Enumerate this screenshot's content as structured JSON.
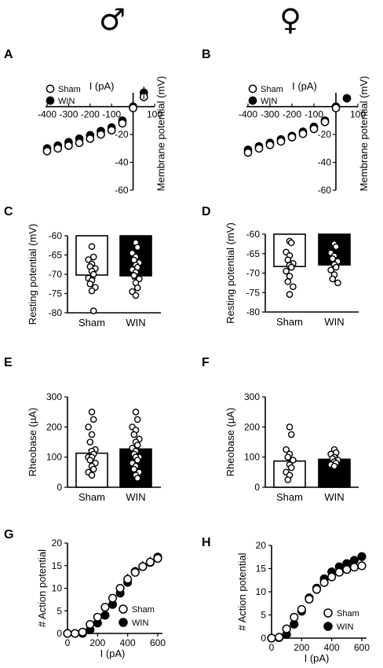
{
  "header": {
    "male_symbol": "♂",
    "female_symbol": "♀"
  },
  "panels": {
    "A": {
      "label": "A"
    },
    "B": {
      "label": "B"
    },
    "C": {
      "label": "C"
    },
    "D": {
      "label": "D"
    },
    "E": {
      "label": "E"
    },
    "F": {
      "label": "F"
    },
    "G": {
      "label": "G"
    },
    "H": {
      "label": "H"
    }
  },
  "colors": {
    "sham_fill": "#ffffff",
    "win_fill": "#000000",
    "stroke": "#000000"
  },
  "chart_data": [
    {
      "id": "A",
      "type": "scatter",
      "xlabel": "I (pA)",
      "ylabel": "Membrane potential (mV)",
      "xlim": [
        -400,
        100
      ],
      "ylim": [
        -60,
        10
      ],
      "xticks": [
        -400,
        -300,
        -200,
        -100,
        100
      ],
      "yticks": [
        -20,
        -40,
        -60
      ],
      "legend": [
        "Sham",
        "WIN"
      ],
      "legend_position": "top-left",
      "series": [
        {
          "name": "Sham",
          "x": [
            -400,
            -350,
            -300,
            -250,
            -200,
            -150,
            -100,
            -50,
            0,
            50
          ],
          "y": [
            -32,
            -30,
            -28,
            -26,
            -23,
            -20,
            -17,
            -12,
            -1,
            7
          ]
        },
        {
          "name": "WIN",
          "x": [
            -400,
            -350,
            -300,
            -250,
            -200,
            -150,
            -100,
            -50,
            0,
            50
          ],
          "y": [
            -30,
            -28,
            -25.5,
            -23,
            -20.5,
            -17.5,
            -15,
            -10,
            0,
            10
          ]
        }
      ]
    },
    {
      "id": "B",
      "type": "scatter",
      "xlabel": "I (pA)",
      "ylabel": "Membrane potential (mV)",
      "xlim": [
        -400,
        100
      ],
      "ylim": [
        -60,
        10
      ],
      "xticks": [
        -400,
        -300,
        -200,
        -100,
        100
      ],
      "yticks": [
        -20,
        -40,
        -60
      ],
      "legend": [
        "Sham",
        "WIN"
      ],
      "legend_position": "top-left",
      "series": [
        {
          "name": "Sham",
          "x": [
            -400,
            -350,
            -300,
            -250,
            -200,
            -150,
            -100,
            -50,
            0
          ],
          "y": [
            -33,
            -30,
            -27.5,
            -25,
            -22,
            -19.5,
            -16,
            -11,
            -1
          ]
        },
        {
          "name": "WIN",
          "x": [
            -400,
            -350,
            -300,
            -250,
            -200,
            -150,
            -100,
            -50,
            0,
            50
          ],
          "y": [
            -31,
            -28.5,
            -26,
            -23.5,
            -21,
            -18,
            -14.5,
            -10,
            0,
            6
          ]
        }
      ]
    },
    {
      "id": "C",
      "type": "bar",
      "categories": [
        "Sham",
        "WIN"
      ],
      "ylabel": "Resting potential (mV)",
      "ylim": [
        -80,
        -60
      ],
      "yticks": [
        -60,
        -65,
        -70,
        -75,
        -80
      ],
      "values": [
        -70.2,
        -70.4
      ],
      "points": [
        [
          -62.8,
          -65.5,
          -66.2,
          -67.3,
          -68,
          -68.5,
          -69.2,
          -70,
          -71,
          -71.6,
          -72.5,
          -73.4,
          -74.3,
          -79.5
        ],
        [
          -61.8,
          -63,
          -64.5,
          -65.5,
          -66.3,
          -67,
          -67.6,
          -68.2,
          -68.8,
          -69.5,
          -70.3,
          -71.2,
          -72.2,
          -73.5,
          -74.5,
          -75.5
        ]
      ]
    },
    {
      "id": "D",
      "type": "bar",
      "categories": [
        "Sham",
        "WIN"
      ],
      "ylabel": "Resting potential (mV)",
      "ylim": [
        -80,
        -60
      ],
      "yticks": [
        -60,
        -65,
        -70,
        -75,
        -80
      ],
      "values": [
        -68.3,
        -67.9
      ],
      "points": [
        [
          -61.8,
          -62.2,
          -64.6,
          -65.5,
          -66.6,
          -67.5,
          -68,
          -68.5,
          -69.5,
          -70.8,
          -72.2,
          -73.5,
          -75.5
        ],
        [
          -62.5,
          -63.2,
          -64.8,
          -65.6,
          -66.3,
          -67,
          -67.8,
          -68.5,
          -69.2,
          -70.4,
          -71.5,
          -72.5
        ]
      ]
    },
    {
      "id": "E",
      "type": "bar",
      "categories": [
        "Sham",
        "WIN"
      ],
      "ylabel": "Rheobase (µA)",
      "ylim": [
        0,
        300
      ],
      "yticks": [
        0,
        100,
        200,
        300
      ],
      "values": [
        113,
        127
      ],
      "points": [
        [
          250,
          225,
          200,
          175,
          150,
          125,
          120,
          110,
          100,
          100,
          90,
          80,
          70,
          60,
          50,
          40
        ],
        [
          250,
          225,
          200,
          190,
          175,
          160,
          150,
          140,
          130,
          120,
          110,
          100,
          100,
          90,
          80,
          70,
          60,
          50,
          40,
          30
        ]
      ]
    },
    {
      "id": "F",
      "type": "bar",
      "categories": [
        "Sham",
        "WIN"
      ],
      "ylabel": "Rheobase (µA)",
      "ylim": [
        0,
        300
      ],
      "yticks": [
        0,
        100,
        200,
        300
      ],
      "values": [
        87,
        93
      ],
      "points": [
        [
          200,
          175,
          125,
          110,
          100,
          90,
          75,
          65,
          50,
          40,
          25
        ],
        [
          125,
          115,
          110,
          100,
          95,
          90,
          85,
          80,
          75,
          70
        ]
      ]
    },
    {
      "id": "G",
      "type": "scatter",
      "xlabel": "I (pA)",
      "ylabel": "# Action potential",
      "xlim": [
        0,
        600
      ],
      "ylim": [
        0,
        20
      ],
      "xticks": [
        0,
        200,
        400,
        600
      ],
      "yticks": [
        0,
        5,
        10,
        15,
        20
      ],
      "legend": [
        "Sham",
        "WIN"
      ],
      "legend_position": "bottom-right",
      "series": [
        {
          "name": "Sham",
          "x": [
            0,
            50,
            100,
            150,
            200,
            250,
            300,
            350,
            400,
            450,
            500,
            550,
            600
          ],
          "y": [
            0,
            0,
            0.3,
            2,
            3.6,
            5.8,
            7.8,
            10,
            12,
            13.5,
            14.8,
            15.8,
            16.6
          ]
        },
        {
          "name": "WIN",
          "x": [
            0,
            50,
            100,
            150,
            200,
            250,
            300,
            350,
            400,
            450,
            500,
            550,
            600
          ],
          "y": [
            0,
            0,
            0,
            0.8,
            2.3,
            4,
            6.4,
            8.9,
            11.3,
            13.7,
            14.8,
            15.7,
            16.9
          ]
        }
      ]
    },
    {
      "id": "H",
      "type": "scatter",
      "xlabel": "I (pA)",
      "ylabel": "# Action potential",
      "xlim": [
        0,
        600
      ],
      "ylim": [
        0,
        20
      ],
      "xticks": [
        0,
        200,
        400,
        600
      ],
      "yticks": [
        0,
        5,
        10,
        15,
        20
      ],
      "legend": [
        "Sham",
        "WIN"
      ],
      "legend_position": "bottom-right",
      "series": [
        {
          "name": "Sham",
          "x": [
            0,
            50,
            100,
            150,
            200,
            250,
            300,
            350,
            400,
            450,
            500,
            550,
            600
          ],
          "y": [
            0,
            0.2,
            2,
            4.5,
            6.2,
            8.4,
            10.5,
            12,
            13.2,
            14.2,
            14.8,
            15.3,
            15.6
          ]
        },
        {
          "name": "WIN",
          "x": [
            0,
            50,
            100,
            150,
            200,
            250,
            300,
            350,
            400,
            450,
            500,
            550,
            600
          ],
          "y": [
            0,
            0.1,
            0.8,
            3,
            5.8,
            8.7,
            10.8,
            12.8,
            14.3,
            15.4,
            16.1,
            16.8,
            17.6
          ]
        }
      ]
    }
  ]
}
